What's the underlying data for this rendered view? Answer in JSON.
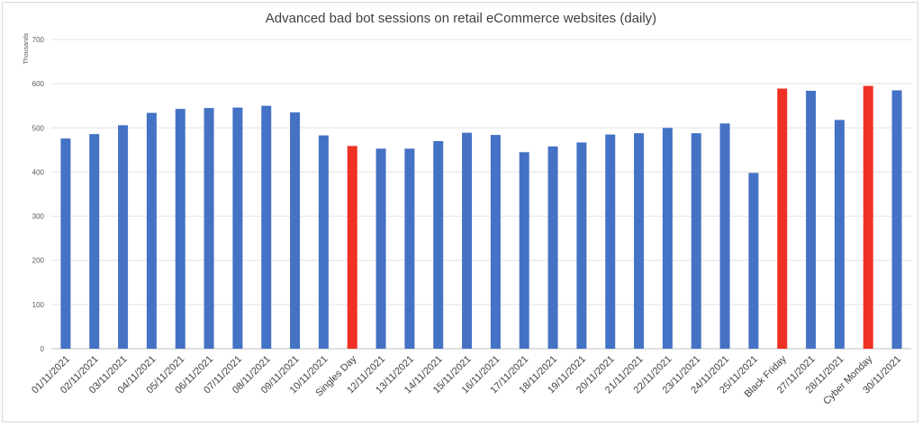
{
  "chart_data": {
    "type": "bar",
    "title": "Advanced bad bot sessions on retail eCommerce websites (daily)",
    "ylabel": "Thousands",
    "ylim": [
      0,
      700
    ],
    "yticks": [
      0,
      100,
      200,
      300,
      400,
      500,
      600,
      700
    ],
    "grid": true,
    "legend": "none",
    "colors": {
      "normal": "#4472C4",
      "highlight": "#EE3124"
    },
    "categories": [
      "01/11/2021",
      "02/11/2021",
      "03/11/2021",
      "04/11/2021",
      "05/11/2021",
      "06/11/2021",
      "07/11/2021",
      "08/11/2021",
      "09/11/2021",
      "10/11/2021",
      "Singles Day",
      "12/11/2021",
      "13/11/2021",
      "14/11/2021",
      "15/11/2021",
      "16/11/2021",
      "17/11/2021",
      "18/11/2021",
      "19/11/2021",
      "20/11/2021",
      "21/11/2021",
      "22/11/2021",
      "23/11/2021",
      "24/11/2021",
      "25/11/2021",
      "Black Friday",
      "27/11/2021",
      "28/11/2021",
      "Cyber Monday",
      "30/11/2021"
    ],
    "values": [
      476,
      486,
      506,
      534,
      543,
      545,
      546,
      550,
      535,
      483,
      459,
      453,
      453,
      470,
      489,
      484,
      445,
      458,
      467,
      485,
      488,
      500,
      488,
      510,
      398,
      589,
      584,
      518,
      595,
      585
    ],
    "highlighted": [
      "Singles Day",
      "Black Friday",
      "Cyber Monday"
    ]
  }
}
